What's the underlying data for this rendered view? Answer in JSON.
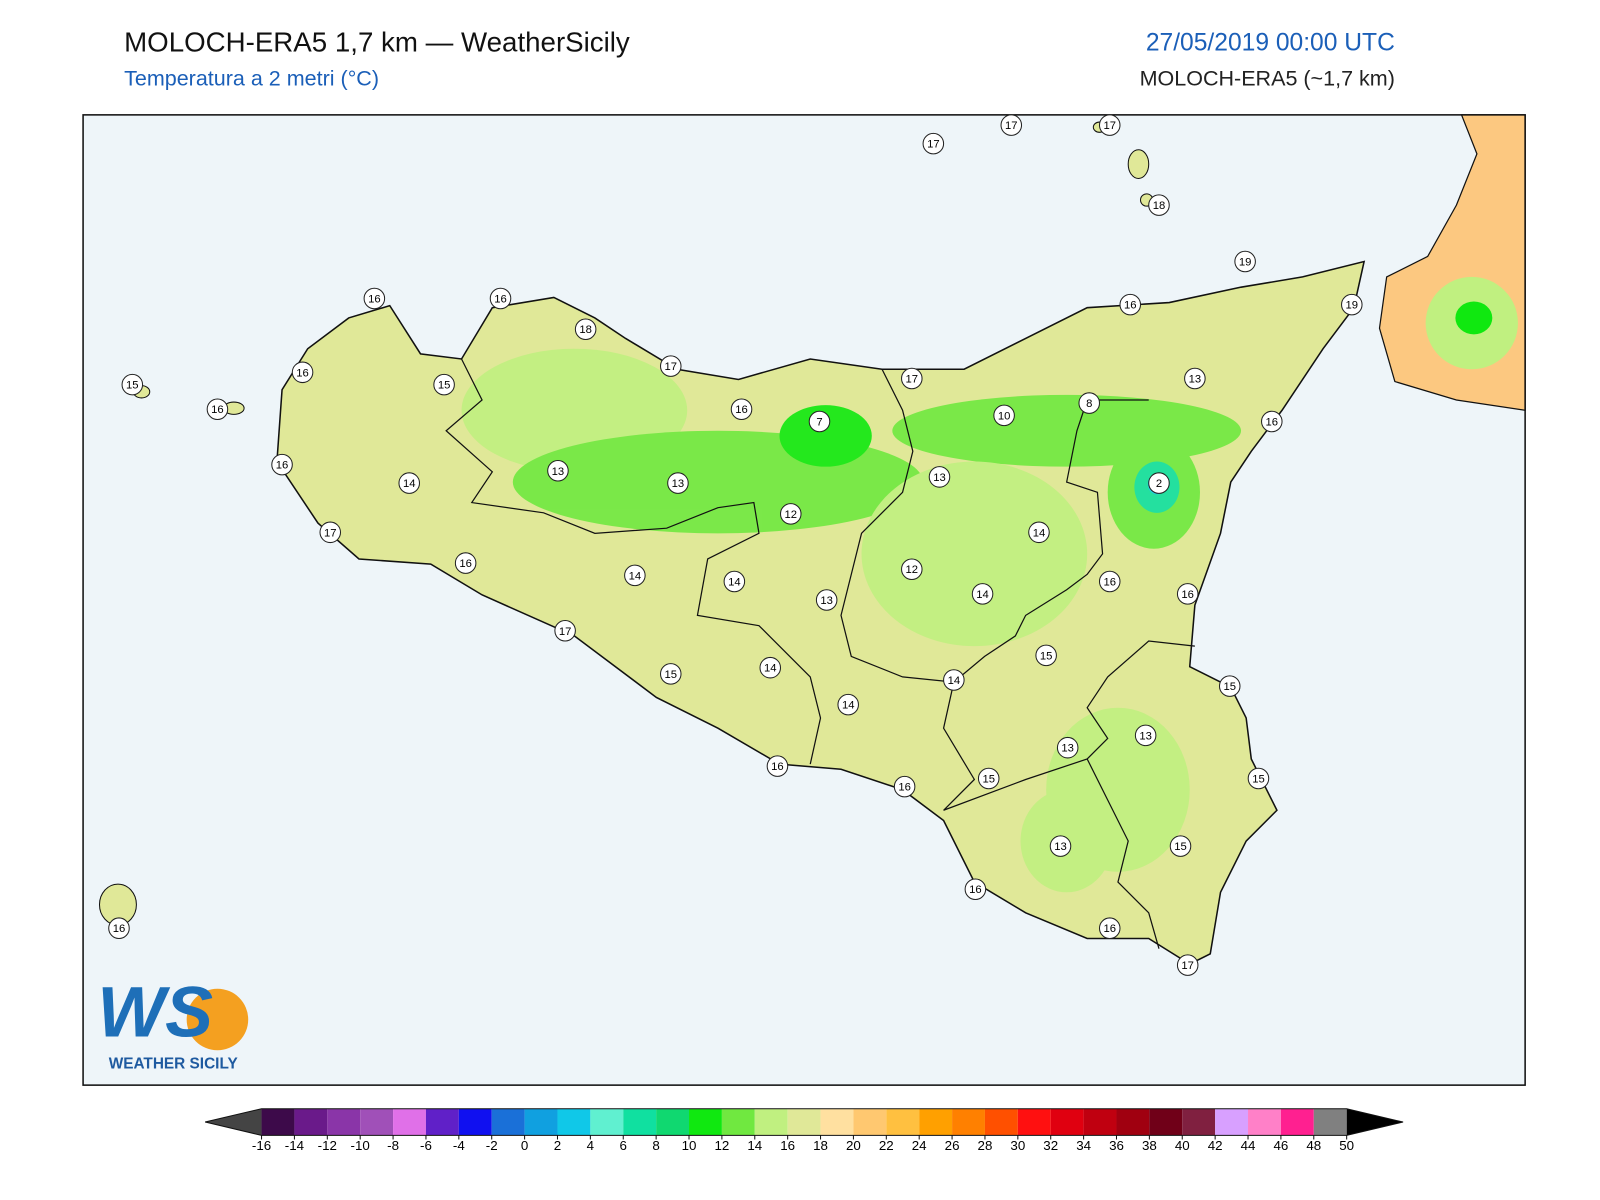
{
  "header": {
    "title": "MOLOCH-ERA5 1,7 km — WeatherSicily",
    "subtitle": "Temperatura a 2 metri (°C)",
    "datetime": "27/05/2019 00:00 UTC",
    "model": "MOLOCH-ERA5 (~1,7 km)"
  },
  "map": {
    "stations": [
      17,
      17,
      17,
      18,
      19,
      19,
      16,
      13,
      16,
      8,
      10,
      2,
      17,
      7,
      16,
      17,
      18,
      16,
      16,
      16,
      15,
      15,
      16,
      16,
      14,
      17,
      13,
      13,
      12,
      13,
      14,
      16,
      14,
      14,
      13,
      12,
      14,
      16,
      16,
      17,
      15,
      14,
      14,
      14,
      15,
      15,
      13,
      13,
      15,
      15,
      16,
      16,
      13,
      15,
      16,
      16,
      17,
      16
    ]
  },
  "logo": {
    "letters": "WS",
    "name": "WEATHER SICILY"
  },
  "colorbar": {
    "ticks": [
      -16,
      -14,
      -12,
      -10,
      -8,
      -6,
      -4,
      -2,
      0,
      2,
      4,
      6,
      8,
      10,
      12,
      14,
      16,
      18,
      20,
      22,
      24,
      26,
      28,
      30,
      32,
      34,
      36,
      38,
      40,
      42,
      44,
      46,
      48,
      50
    ],
    "colors": [
      "#3d0a4a",
      "#6a1a8a",
      "#8a35a8",
      "#a050b8",
      "#e070e8",
      "#6020c8",
      "#1010f0",
      "#1a70d8",
      "#10a0e0",
      "#10c8e8",
      "#60f0d0",
      "#10e0a0",
      "#10d870",
      "#10e810",
      "#70e840",
      "#c0f080",
      "#e0e898",
      "#ffe0a0",
      "#ffc870",
      "#ffc040",
      "#ffa000",
      "#ff8000",
      "#ff5000",
      "#ff1010",
      "#e00010",
      "#c00010",
      "#a00010",
      "#700018",
      "#802040",
      "#d8a0ff",
      "#ff80c8",
      "#ff2090",
      "#808080",
      "#404040"
    ],
    "under_color": "#444444",
    "over_color": "#000000"
  }
}
